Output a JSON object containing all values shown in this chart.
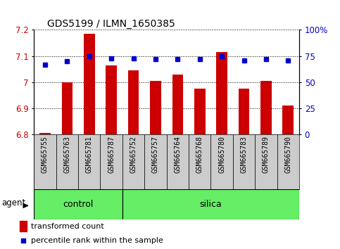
{
  "title": "GDS5199 / ILMN_1650385",
  "samples": [
    "GSM665755",
    "GSM665763",
    "GSM665781",
    "GSM665787",
    "GSM665752",
    "GSM665757",
    "GSM665764",
    "GSM665768",
    "GSM665780",
    "GSM665783",
    "GSM665789",
    "GSM665790"
  ],
  "bar_values": [
    6.805,
    7.0,
    7.185,
    7.065,
    7.045,
    7.005,
    7.03,
    6.975,
    7.115,
    6.975,
    7.005,
    6.91
  ],
  "bar_base": 6.8,
  "percentile_values": [
    67,
    70,
    75,
    73,
    73,
    72,
    72,
    72,
    75,
    71,
    72,
    71
  ],
  "ylim_left": [
    6.8,
    7.2
  ],
  "ylim_right": [
    0,
    100
  ],
  "yticks_left": [
    6.8,
    6.9,
    7.0,
    7.1,
    7.2
  ],
  "ytick_labels_left": [
    "6.8",
    "6.9",
    "7",
    "7.1",
    "7.2"
  ],
  "yticks_right": [
    0,
    25,
    50,
    75,
    100
  ],
  "ytick_labels_right": [
    "0",
    "25",
    "50",
    "75",
    "100%"
  ],
  "control_count": 4,
  "silica_count": 8,
  "bar_color": "#cc0000",
  "dot_color": "#0000cc",
  "group_color": "#66ee66",
  "sample_box_color": "#cccccc",
  "bg_color": "#ffffff",
  "tick_label_color_left": "#cc0000",
  "tick_label_color_right": "#0000cc",
  "legend_bar_label": "transformed count",
  "legend_dot_label": "percentile rank within the sample",
  "agent_label": "agent",
  "control_label": "control",
  "silica_label": "silica"
}
